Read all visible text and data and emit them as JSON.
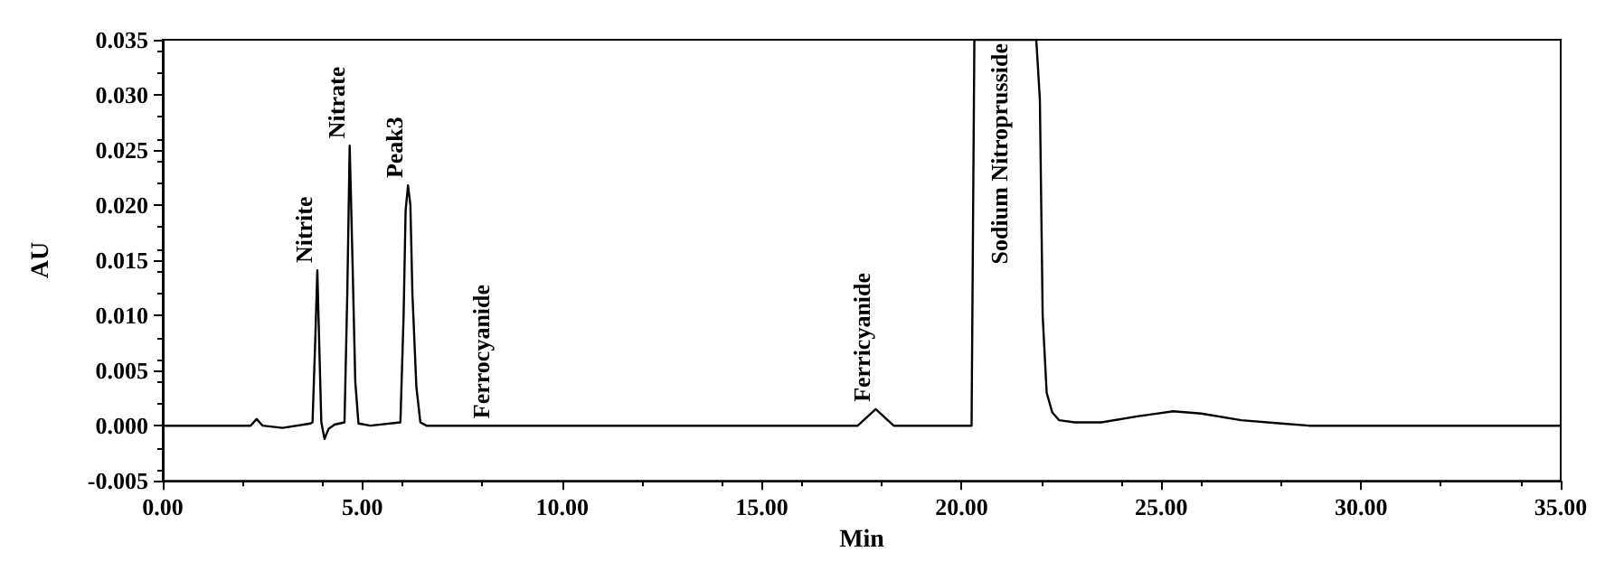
{
  "chart_data": {
    "type": "line",
    "xlabel": "Min",
    "ylabel": "AU",
    "x": [
      0,
      2.2,
      2.35,
      2.5,
      3.0,
      3.7,
      3.75,
      3.82,
      3.87,
      3.92,
      3.97,
      4.05,
      4.15,
      4.3,
      4.55,
      4.62,
      4.68,
      4.75,
      4.82,
      4.9,
      5.2,
      5.95,
      6.03,
      6.08,
      6.14,
      6.2,
      6.25,
      6.35,
      6.45,
      6.6,
      17.4,
      17.85,
      18.3,
      20.25,
      20.32,
      21.87,
      21.96,
      22.03,
      22.13,
      22.27,
      22.44,
      22.83,
      23.5,
      24.5,
      25.3,
      26,
      27,
      28,
      28.7,
      35
    ],
    "series": [
      {
        "color": "#000000",
        "values": [
          0,
          0,
          0.0006,
          0,
          -0.0002,
          0.0002,
          0.0003,
          0.008,
          0.0141,
          0.007,
          0.0003,
          -0.0012,
          -0.0003,
          0.0001,
          0.0003,
          0.012,
          0.0254,
          0.015,
          0.004,
          0.0002,
          0,
          0.0003,
          0.01,
          0.0195,
          0.0218,
          0.02,
          0.012,
          0.0035,
          0.0003,
          0,
          0,
          0.0015,
          0,
          0,
          0.035,
          0.035,
          0.0296,
          0.01,
          0.003,
          0.0012,
          0.0005,
          0.0003,
          0.0003,
          0.0009,
          0.0013,
          0.0011,
          0.0005,
          0.0002,
          0,
          0
        ]
      }
    ],
    "xlim": [
      0,
      35
    ],
    "xticks": [
      {
        "value": 0,
        "label": "0.00"
      },
      {
        "value": 5,
        "label": "5.00"
      },
      {
        "value": 10,
        "label": "10.00"
      },
      {
        "value": 15,
        "label": "15.00"
      },
      {
        "value": 20,
        "label": "20.00"
      },
      {
        "value": 25,
        "label": "25.00"
      },
      {
        "value": 30,
        "label": "30.00"
      },
      {
        "value": 35,
        "label": "35.00"
      }
    ],
    "ylim": [
      -0.005,
      0.035
    ],
    "yticks": [
      {
        "value": -0.005,
        "label": "-0.005"
      },
      {
        "value": 0,
        "label": "0.000"
      },
      0.005,
      {
        "value": 0.01,
        "label": "0.010"
      },
      0.015,
      {
        "value": 0.02,
        "label": "0.020"
      },
      0.025,
      {
        "value": 0.03,
        "label": "0.030"
      },
      0.035
    ],
    "annotations": [
      {
        "text": "Nitrite",
        "x": 3.87,
        "y": 0.0141
      },
      {
        "text": "Nitrate",
        "x": 4.68,
        "y": 0.0254
      },
      {
        "text": "Peak3",
        "x": 6.14,
        "y": 0.0218
      },
      {
        "text": "Ferrocyanide",
        "x": 8.3,
        "y": 0
      },
      {
        "text": "Ferricyanide",
        "x": 17.85,
        "y": 0.0015
      },
      {
        "text": "Sodium Nitroprusside",
        "x": 20.32,
        "y": 0.035
      }
    ],
    "grid": false,
    "marker": "none",
    "line_style": "solid"
  }
}
